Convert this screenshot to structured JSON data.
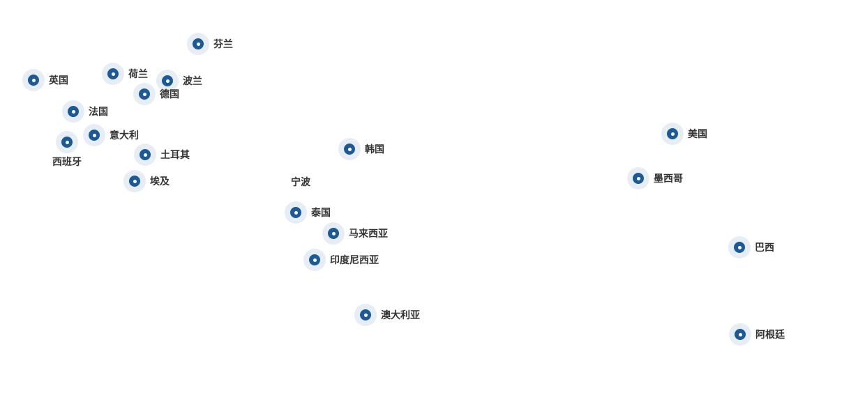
{
  "accent_color": "#1b5a96",
  "halo_color": "#e6edf5",
  "origin_label": "宁波",
  "locations": [
    {
      "name": "芬兰"
    },
    {
      "name": "英国"
    },
    {
      "name": "荷兰"
    },
    {
      "name": "波兰"
    },
    {
      "name": "德国"
    },
    {
      "name": "法国"
    },
    {
      "name": "意大利"
    },
    {
      "name": "西班牙"
    },
    {
      "name": "土耳其"
    },
    {
      "name": "埃及"
    },
    {
      "name": "韩国"
    },
    {
      "name": "泰国"
    },
    {
      "name": "马来西亚"
    },
    {
      "name": "印度尼西亚"
    },
    {
      "name": "澳大利亚"
    },
    {
      "name": "美国"
    },
    {
      "name": "墨西哥"
    },
    {
      "name": "巴西"
    },
    {
      "name": "阿根廷"
    }
  ]
}
